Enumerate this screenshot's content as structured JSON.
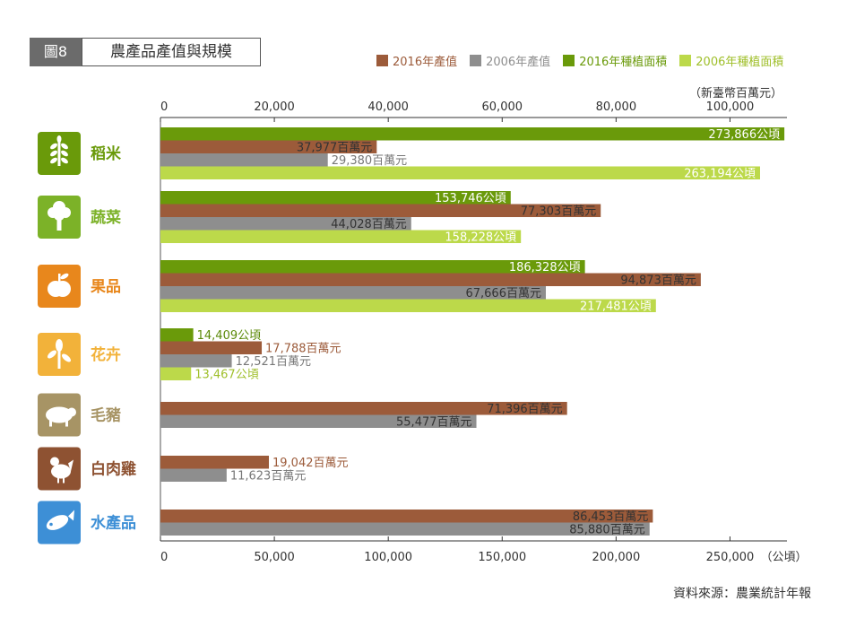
{
  "figure": {
    "badge": "圖8",
    "title": "農產品產值與規模"
  },
  "legend": [
    {
      "label": "2016年產值",
      "color": "#9c5b3a"
    },
    {
      "label": "2006年產值",
      "color": "#8e8e8e"
    },
    {
      "label": "2016年種植面積",
      "color": "#6a9a0a"
    },
    {
      "label": "2006年種植面積",
      "color": "#bcd94a"
    }
  ],
  "top_axis_unit": "（新臺幣百萬元）",
  "source": "資料來源：農業統計年報",
  "chart_data": {
    "type": "bar",
    "orientation": "horizontal",
    "value_axis": {
      "label": "新臺幣百萬元",
      "range": [
        0,
        110000
      ],
      "ticks": [
        "0",
        "20,000",
        "40,000",
        "60,000",
        "80,000",
        "100,000"
      ],
      "position": "top"
    },
    "area_axis": {
      "label": "公頃",
      "range": [
        0,
        275000
      ],
      "ticks": [
        "0",
        "50,000",
        "100,000",
        "150,000",
        "200,000",
        "250,000"
      ],
      "tick_suffix_last": "（公頃）",
      "position": "bottom"
    },
    "categories": [
      {
        "name": "稻米",
        "color": "#6a9a0a",
        "icon": "wheat-icon",
        "bars": [
          {
            "series": "2016年種植面積",
            "value": 273866,
            "label": "273,866公頃"
          },
          {
            "series": "2016年產值",
            "value": 37977,
            "label": "37,977百萬元"
          },
          {
            "series": "2006年產值",
            "value": 29380,
            "label": "29,380百萬元"
          },
          {
            "series": "2006年種植面積",
            "value": 263194,
            "label": "263,194公頃"
          }
        ]
      },
      {
        "name": "蔬菜",
        "color": "#7cb228",
        "icon": "broccoli-icon",
        "bars": [
          {
            "series": "2016年種植面積",
            "value": 153746,
            "label": "153,746公頃"
          },
          {
            "series": "2016年產值",
            "value": 77303,
            "label": "77,303百萬元"
          },
          {
            "series": "2006年產值",
            "value": 44028,
            "label": "44,028百萬元"
          },
          {
            "series": "2006年種植面積",
            "value": 158228,
            "label": "158,228公頃"
          }
        ]
      },
      {
        "name": "果品",
        "color": "#e8871c",
        "icon": "apple-icon",
        "bars": [
          {
            "series": "2016年種植面積",
            "value": 186328,
            "label": "186,328公頃"
          },
          {
            "series": "2016年產值",
            "value": 94873,
            "label": "94,873百萬元"
          },
          {
            "series": "2006年產值",
            "value": 67666,
            "label": "67,666百萬元"
          },
          {
            "series": "2006年種植面積",
            "value": 217481,
            "label": "217,481公頃"
          }
        ]
      },
      {
        "name": "花卉",
        "color": "#f2b23a",
        "icon": "flower-icon",
        "bars": [
          {
            "series": "2016年種植面積",
            "value": 14409,
            "label": "14,409公頃"
          },
          {
            "series": "2016年產值",
            "value": 17788,
            "label": "17,788百萬元"
          },
          {
            "series": "2006年產值",
            "value": 12521,
            "label": "12,521百萬元"
          },
          {
            "series": "2006年種植面積",
            "value": 13467,
            "label": "13,467公頃"
          }
        ]
      },
      {
        "name": "毛豬",
        "color": "#a79465",
        "icon": "pig-icon",
        "bars": [
          {
            "series": "2016年產值",
            "value": 71396,
            "label": "71,396百萬元"
          },
          {
            "series": "2006年產值",
            "value": 55477,
            "label": "55,477百萬元"
          }
        ]
      },
      {
        "name": "白肉雞",
        "color": "#8e5232",
        "icon": "chicken-icon",
        "bars": [
          {
            "series": "2016年產值",
            "value": 19042,
            "label": "19,042百萬元"
          },
          {
            "series": "2006年產值",
            "value": 11623,
            "label": "11,623百萬元"
          }
        ]
      },
      {
        "name": "水產品",
        "color": "#3d8fd6",
        "icon": "fish-icon",
        "bars": [
          {
            "series": "2016年產值",
            "value": 86453,
            "label": "86,453百萬元"
          },
          {
            "series": "2006年產值",
            "value": 85880,
            "label": "85,880百萬元"
          }
        ]
      }
    ]
  }
}
